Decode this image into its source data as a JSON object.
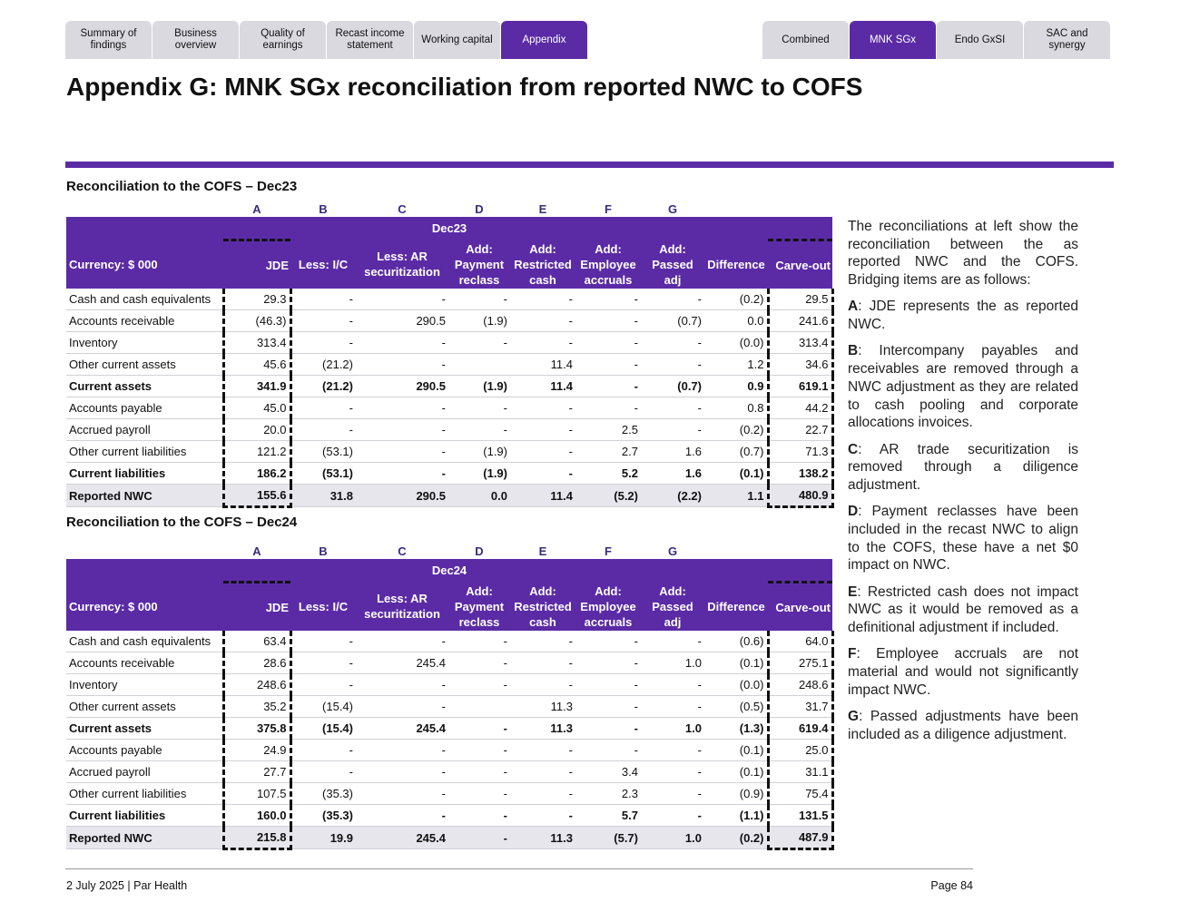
{
  "tabs": {
    "left": [
      "Summary of findings",
      "Business overview",
      "Quality of earnings",
      "Recast income statement",
      "Working capital",
      "Appendix"
    ],
    "left_active": 5,
    "right": [
      "Combined",
      "MNK SGx",
      "Endo GxSI",
      "SAC and synergy"
    ],
    "right_active": 1
  },
  "title": "Appendix G: MNK SGx reconciliation from reported NWC to COFS",
  "tables": [
    {
      "heading": "Reconciliation to the COFS – Dec23",
      "letters": [
        "A",
        "B",
        "C",
        "D",
        "E",
        "F",
        "G"
      ],
      "period": "Dec23",
      "columns": [
        "Currency: $ 000",
        "JDE",
        "Less: I/C",
        "Less: AR securitization",
        "Add: Payment reclass",
        "Add: Restricted cash",
        "Add: Employee accruals",
        "Add: Passed adj",
        "Difference",
        "Carve-out"
      ],
      "rows": [
        {
          "label": "Cash and cash equivalents",
          "cells": [
            "29.3",
            "-",
            "-",
            "-",
            "-",
            "-",
            "-",
            "(0.2)",
            "29.5"
          ]
        },
        {
          "label": "Accounts receivable",
          "cells": [
            "(46.3)",
            "-",
            "290.5",
            "(1.9)",
            "-",
            "-",
            "(0.7)",
            "0.0",
            "241.6"
          ]
        },
        {
          "label": "Inventory",
          "cells": [
            "313.4",
            "-",
            "-",
            "-",
            "-",
            "-",
            "-",
            "(0.0)",
            "313.4"
          ]
        },
        {
          "label": "Other current assets",
          "cells": [
            "45.6",
            "(21.2)",
            "-",
            null,
            "11.4",
            "-",
            "-",
            "1.2",
            "34.6"
          ]
        },
        {
          "label": "Current assets",
          "bold": true,
          "cells": [
            "341.9",
            "(21.2)",
            "290.5",
            "(1.9)",
            "11.4",
            "-",
            "(0.7)",
            "0.9",
            "619.1"
          ]
        },
        {
          "label": "Accounts payable",
          "cells": [
            "45.0",
            "-",
            "-",
            "-",
            "-",
            "-",
            "-",
            "0.8",
            "44.2"
          ]
        },
        {
          "label": "Accrued payroll",
          "cells": [
            "20.0",
            "-",
            "-",
            "-",
            "-",
            "2.5",
            "-",
            "(0.2)",
            "22.7"
          ]
        },
        {
          "label": "Other current liabilities",
          "cells": [
            "121.2",
            "(53.1)",
            "-",
            "(1.9)",
            "-",
            "2.7",
            "1.6",
            "(0.7)",
            "71.3"
          ]
        },
        {
          "label": "Current liabilities",
          "bold": true,
          "cells": [
            "186.2",
            "(53.1)",
            "-",
            "(1.9)",
            "-",
            "5.2",
            "1.6",
            "(0.1)",
            "138.2"
          ]
        },
        {
          "label": "Reported NWC",
          "bold": true,
          "shaded": true,
          "cells": [
            "155.6",
            "31.8",
            "290.5",
            "0.0",
            "11.4",
            "(5.2)",
            "(2.2)",
            "1.1",
            "480.9"
          ]
        }
      ]
    },
    {
      "heading": "Reconciliation to the COFS – Dec24",
      "letters": [
        "A",
        "B",
        "C",
        "D",
        "E",
        "F",
        "G"
      ],
      "period": "Dec24",
      "columns": [
        "Currency: $ 000",
        "JDE",
        "Less: I/C",
        "Less: AR securitization",
        "Add: Payment reclass",
        "Add: Restricted cash",
        "Add: Employee accruals",
        "Add: Passed adj",
        "Difference",
        "Carve-out"
      ],
      "rows": [
        {
          "label": "Cash and cash equivalents",
          "cells": [
            "63.4",
            "-",
            "-",
            "-",
            "-",
            "-",
            "-",
            "(0.6)",
            "64.0"
          ]
        },
        {
          "label": "Accounts receivable",
          "cells": [
            "28.6",
            "-",
            "245.4",
            "-",
            "-",
            "-",
            "1.0",
            "(0.1)",
            "275.1"
          ]
        },
        {
          "label": "Inventory",
          "cells": [
            "248.6",
            "-",
            "-",
            "-",
            "-",
            "-",
            "-",
            "(0.0)",
            "248.6"
          ]
        },
        {
          "label": "Other current assets",
          "cells": [
            "35.2",
            "(15.4)",
            "-",
            null,
            "11.3",
            "-",
            "-",
            "(0.5)",
            "31.7"
          ]
        },
        {
          "label": "Current assets",
          "bold": true,
          "cells": [
            "375.8",
            "(15.4)",
            "245.4",
            "-",
            "11.3",
            "-",
            "1.0",
            "(1.3)",
            "619.4"
          ]
        },
        {
          "label": "Accounts payable",
          "cells": [
            "24.9",
            "-",
            "-",
            "-",
            "-",
            "-",
            "-",
            "(0.1)",
            "25.0"
          ]
        },
        {
          "label": "Accrued payroll",
          "cells": [
            "27.7",
            "-",
            "-",
            "-",
            "-",
            "3.4",
            "-",
            "(0.1)",
            "31.1"
          ]
        },
        {
          "label": "Other current liabilities",
          "cells": [
            "107.5",
            "(35.3)",
            "-",
            "-",
            "-",
            "2.3",
            "-",
            "(0.9)",
            "75.4"
          ]
        },
        {
          "label": "Current liabilities",
          "bold": true,
          "cells": [
            "160.0",
            "(35.3)",
            "-",
            "-",
            "-",
            "5.7",
            "-",
            "(1.1)",
            "131.5"
          ]
        },
        {
          "label": "Reported NWC",
          "bold": true,
          "shaded": true,
          "cells": [
            "215.8",
            "19.9",
            "245.4",
            "-",
            "11.3",
            "(5.7)",
            "1.0",
            "(0.2)",
            "487.9"
          ]
        }
      ]
    }
  ],
  "notes": {
    "intro": "The reconciliations at left show the reconciliation between the as reported NWC and the COFS. Bridging items are as follows:",
    "items": [
      {
        "key": "A",
        "text": ": JDE represents the as reported NWC."
      },
      {
        "key": "B",
        "text": ": Intercompany payables and receivables are removed through a NWC adjustment as they are related to cash pooling and corporate allocations invoices."
      },
      {
        "key": "C",
        "text": ": AR trade securitization is removed through a diligence adjustment."
      },
      {
        "key": "D",
        "text": ": Payment reclasses have been included in the recast NWC to align to the COFS, these have a net $0 impact on NWC."
      },
      {
        "key": "E",
        "text": ": Restricted cash does not impact NWC as it would be removed as a definitional adjustment if included."
      },
      {
        "key": "F",
        "text": ": Employee accruals are not material and would not significantly impact NWC."
      },
      {
        "key": "G",
        "text": ": Passed adjustments have been included as a diligence adjustment."
      }
    ]
  },
  "footer": {
    "left": "2 July 2025 | Par Health",
    "right": "Page 84"
  }
}
